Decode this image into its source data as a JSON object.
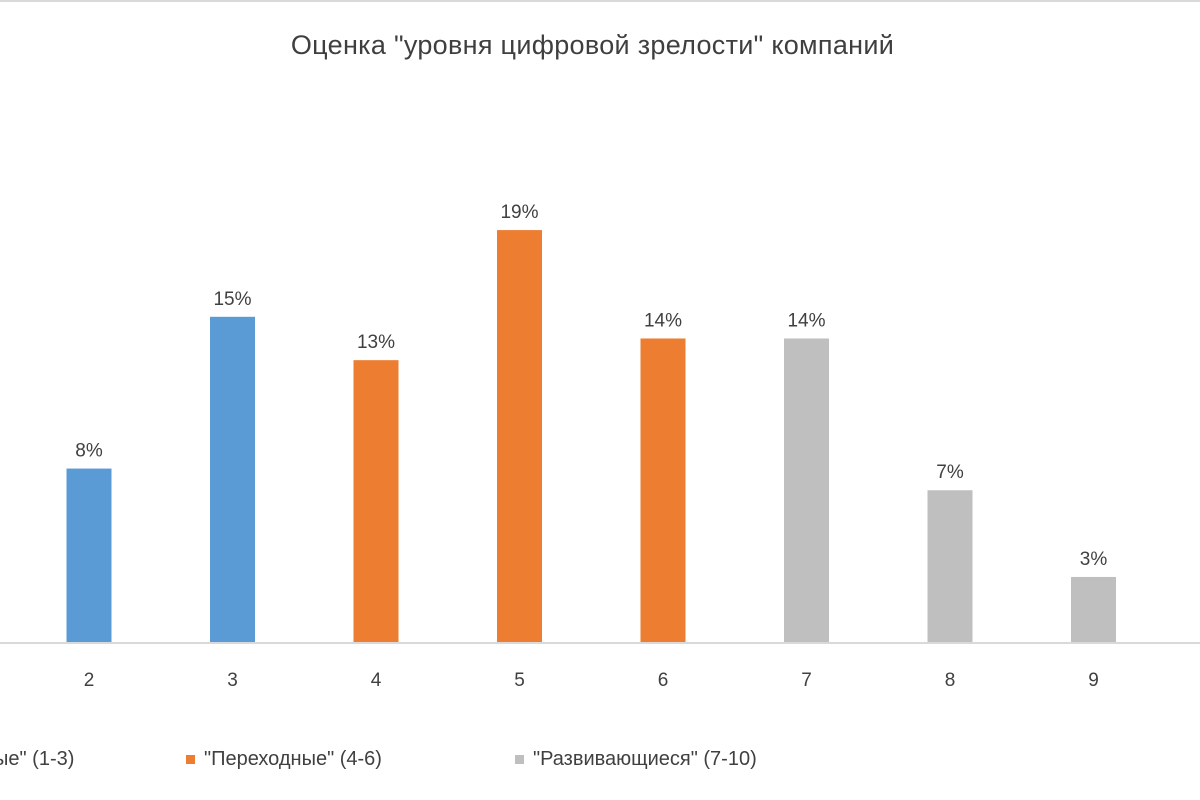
{
  "chart_data": {
    "type": "bar",
    "title": "Оценка \"уровня цифровой зрелости\" компаний",
    "categories": [
      "2",
      "3",
      "4",
      "5",
      "6",
      "7",
      "8",
      "9"
    ],
    "values": [
      8,
      15,
      13,
      19,
      14,
      14,
      7,
      3
    ],
    "data_labels": [
      "8%",
      "15%",
      "13%",
      "19%",
      "14%",
      "14%",
      "7%",
      "3%"
    ],
    "groups": [
      "1-3",
      "1-3",
      "4-6",
      "4-6",
      "4-6",
      "7-10",
      "7-10",
      "7-10"
    ],
    "ylim": [
      0,
      30
    ],
    "grid": false,
    "legend_position": "bottom",
    "legend": [
      {
        "group": "1-3",
        "label": "ые\" (1-3)",
        "color": "#5b9bd5"
      },
      {
        "group": "4-6",
        "label": "\"Переходные\" (4-6)",
        "color": "#ed7d31"
      },
      {
        "group": "7-10",
        "label": "\"Развивающиеся\" (7-10)",
        "color": "#bfbfbf"
      }
    ],
    "colors": {
      "axis": "#d9d9d9",
      "tick_text": "#404040",
      "label_text": "#404040"
    }
  }
}
